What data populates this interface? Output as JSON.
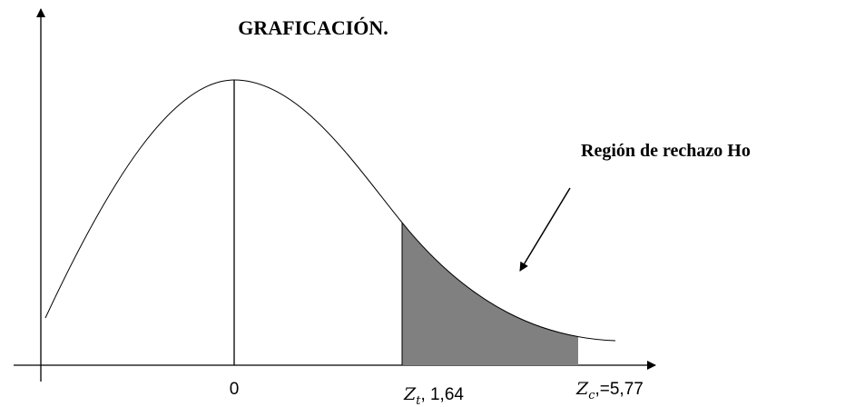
{
  "title": "GRAFICACIÓN.",
  "annotation": "Región de rechazo Ho",
  "labels": {
    "center": "0",
    "critical_table": {
      "symbol": "Z",
      "subscript": "t",
      "text": ", 1,64"
    },
    "critical_calc": {
      "symbol": "Z",
      "subscript": "c",
      "text": ",=5,77"
    }
  }
}
